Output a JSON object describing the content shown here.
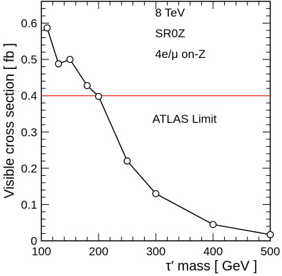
{
  "chart_data": {
    "type": "line",
    "title": "",
    "xlabel": "τ′ mass  [ GeV ]",
    "ylabel": "Visible cross section [ fb ]",
    "xlim": [
      100,
      500
    ],
    "ylim": [
      0,
      0.66
    ],
    "x_ticks": [
      100,
      200,
      300,
      400,
      500
    ],
    "x_tick_labels": [
      "100",
      "200",
      "300",
      "400",
      "500"
    ],
    "y_ticks": [
      0,
      0.1,
      0.2,
      0.3,
      0.4,
      0.5,
      0.6
    ],
    "y_tick_labels": [
      "0",
      "0.1",
      "0.2",
      "0.3",
      "0.4",
      "0.5",
      "0.6"
    ],
    "grid": false,
    "series": [
      {
        "x": [
          110,
          130,
          150,
          180,
          200,
          250,
          300,
          400,
          500
        ],
        "y": [
          0.587,
          0.488,
          0.5,
          0.428,
          0.398,
          0.22,
          0.13,
          0.045,
          0.017
        ],
        "marker": "open-circle",
        "color": "#000000"
      }
    ],
    "reference_lines": [
      {
        "orientation": "horizontal",
        "y": 0.4,
        "color": "#e8392a",
        "label": "ATLAS Limit"
      }
    ],
    "annotations": [
      "8 TeV",
      "SR0Z",
      "4e/μ on-Z"
    ]
  }
}
